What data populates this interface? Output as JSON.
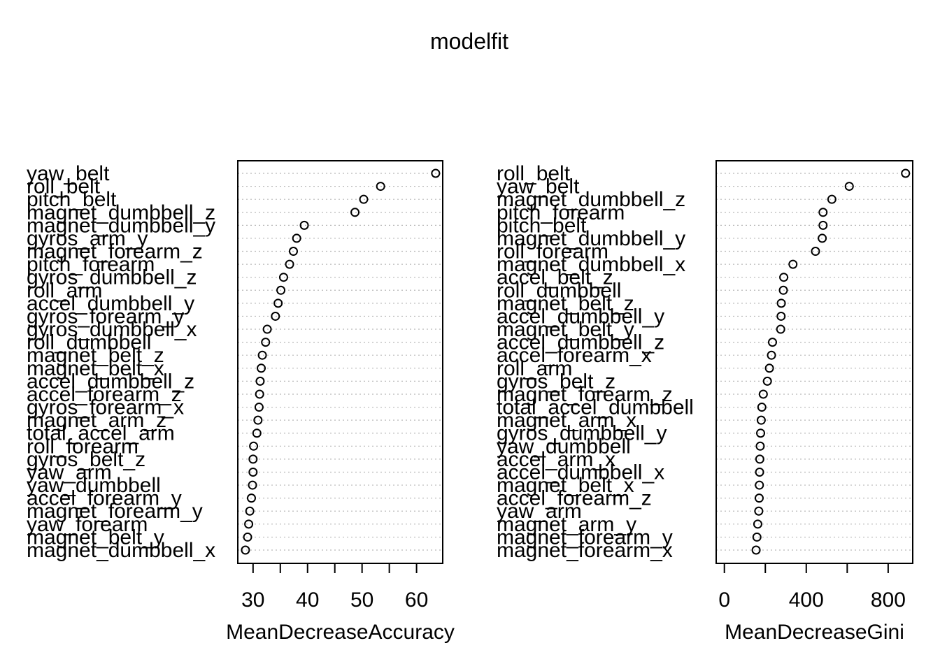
{
  "title": "modelfit",
  "chart_data": [
    {
      "type": "scatter",
      "xlabel": "MeanDecreaseAccuracy",
      "xlim": [
        27.2,
        64.8
      ],
      "xticks": [
        30,
        35,
        40,
        45,
        50,
        55,
        60
      ],
      "xticklabels": [
        "30",
        "",
        "40",
        "",
        "50",
        "",
        "60"
      ],
      "grid": true,
      "categories": [
        "yaw_belt",
        "roll_belt",
        "pitch_belt",
        "magnet_dumbbell_z",
        "magnet_dumbbell_y",
        "gyros_arm_y",
        "magnet_forearm_z",
        "pitch_forearm",
        "gyros_dumbbell_z",
        "roll_arm",
        "accel_dumbbell_y",
        "gyros_forearm_y",
        "gyros_dumbbell_x",
        "roll_dumbbell",
        "magnet_belt_z",
        "magnet_belt_x",
        "accel_dumbbell_z",
        "accel_forearm_z",
        "gyros_forearm_x",
        "magnet_arm_z",
        "total_accel_arm",
        "roll_forearm",
        "gyros_belt_z",
        "yaw_arm",
        "yaw_dumbbell",
        "accel_forearm_y",
        "magnet_forearm_y",
        "yaw_forearm",
        "magnet_belt_y",
        "magnet_dumbbell_x"
      ],
      "values": [
        63.5,
        53.4,
        50.3,
        48.7,
        39.4,
        38.0,
        37.4,
        36.7,
        35.6,
        35.1,
        34.6,
        34.1,
        32.6,
        32.3,
        31.7,
        31.5,
        31.3,
        31.2,
        31.1,
        30.9,
        30.7,
        30.1,
        30.0,
        30.0,
        29.9,
        29.7,
        29.4,
        29.2,
        29.0,
        28.6
      ]
    },
    {
      "type": "scatter",
      "xlabel": "MeanDecreaseGini",
      "xlim": [
        -40,
        920
      ],
      "xticks": [
        0,
        200,
        400,
        600,
        800
      ],
      "xticklabels": [
        "0",
        "",
        "400",
        "",
        "800"
      ],
      "grid": true,
      "categories": [
        "roll_belt",
        "yaw_belt",
        "magnet_dumbbell_z",
        "pitch_forearm",
        "pitch_belt",
        "magnet_dumbbell_y",
        "roll_forearm",
        "magnet_dumbbell_x",
        "accel_belt_z",
        "roll_dumbbell",
        "magnet_belt_z",
        "accel_dumbbell_y",
        "magnet_belt_y",
        "accel_dumbbell_z",
        "accel_forearm_x",
        "roll_arm",
        "gyros_belt_z",
        "magnet_forearm_z",
        "total_accel_dumbbell",
        "magnet_arm_x",
        "gyros_dumbbell_y",
        "yaw_dumbbell",
        "accel_arm_x",
        "accel_dumbbell_x",
        "magnet_belt_x",
        "accel_forearm_z",
        "yaw_arm",
        "magnet_arm_y",
        "magnet_forearm_y",
        "magnet_forearm_x"
      ],
      "values": [
        885,
        610,
        525,
        482,
        482,
        478,
        445,
        335,
        290,
        288,
        278,
        277,
        275,
        235,
        230,
        220,
        210,
        190,
        183,
        180,
        177,
        175,
        173,
        172,
        171,
        170,
        168,
        163,
        159,
        155
      ]
    }
  ]
}
